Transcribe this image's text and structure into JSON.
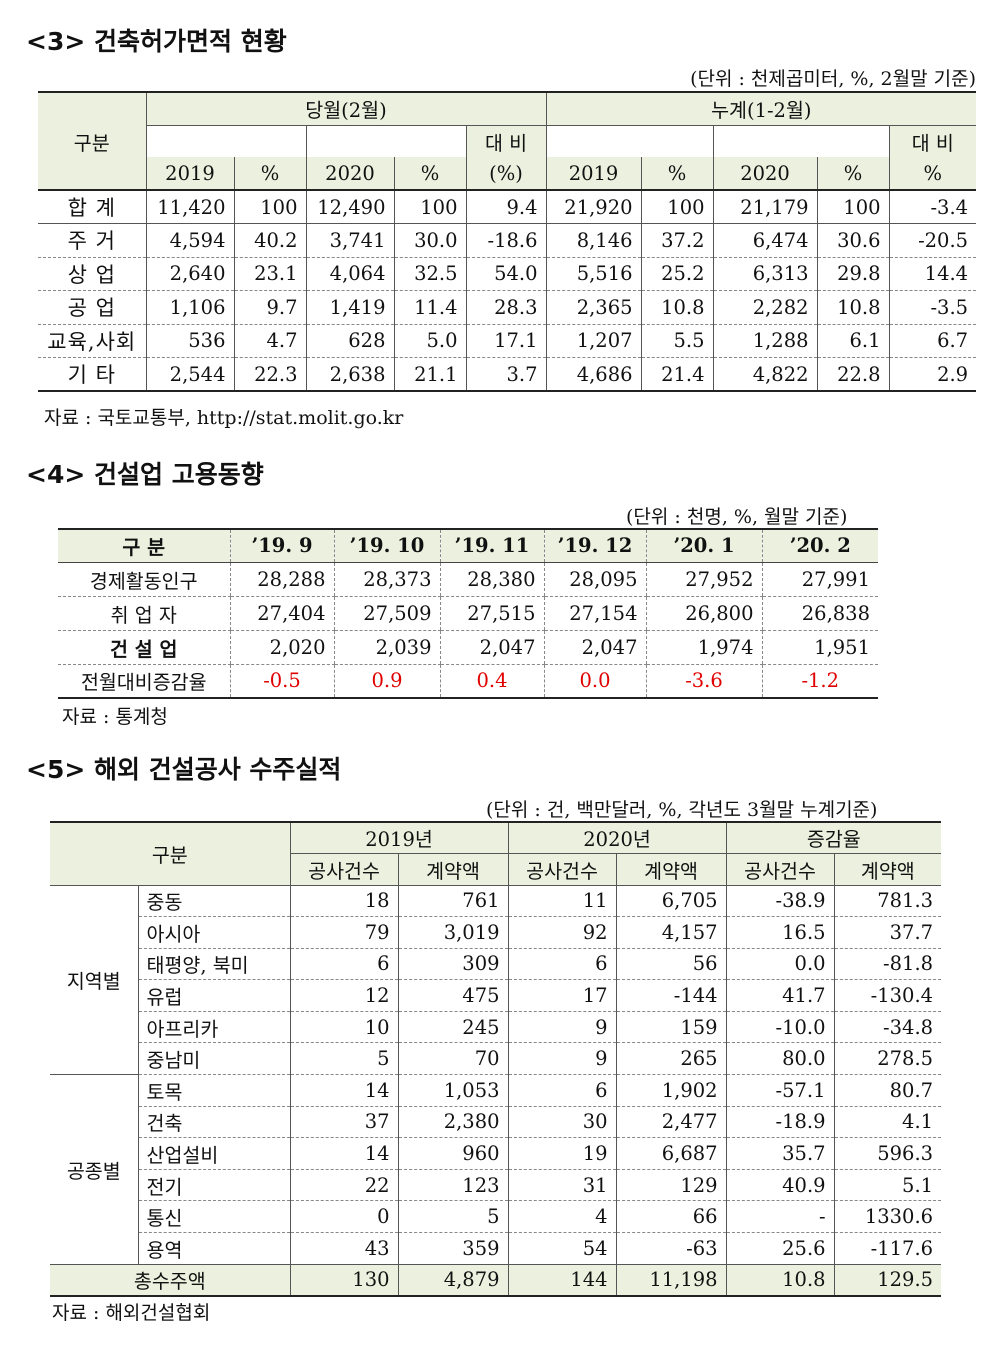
{
  "s3": {
    "title": "<3> 건축허가면적 현황",
    "unit": "(단위 : 천제곱미터,  %, 2월말 기준)",
    "h_group": "구분",
    "h_month": "당월(2월)",
    "h_cum": "누계(1-2월)",
    "h_y2019": "2019",
    "h_pct": "%",
    "h_y2020": "2020",
    "h_cmp1": "대 비",
    "h_cmp1b": "(%)",
    "h_cmp2": "대 비",
    "h_cmp2b": "%",
    "rows": [
      {
        "label": "합 계",
        "v": [
          "11,420",
          "100",
          "12,490",
          "100",
          "9.4",
          "21,920",
          "100",
          "21,179",
          "100",
          "-3.4"
        ]
      },
      {
        "label": "주 거",
        "v": [
          "4,594",
          "40.2",
          "3,741",
          "30.0",
          "-18.6",
          "8,146",
          "37.2",
          "6,474",
          "30.6",
          "-20.5"
        ]
      },
      {
        "label": "상 업",
        "v": [
          "2,640",
          "23.1",
          "4,064",
          "32.5",
          "54.0",
          "5,516",
          "25.2",
          "6,313",
          "29.8",
          "14.4"
        ]
      },
      {
        "label": "공 업",
        "v": [
          "1,106",
          "9.7",
          "1,419",
          "11.4",
          "28.3",
          "2,365",
          "10.8",
          "2,282",
          "10.8",
          "-3.5"
        ]
      },
      {
        "label": "교육,사회",
        "v": [
          "536",
          "4.7",
          "628",
          "5.0",
          "17.1",
          "1,207",
          "5.5",
          "1,288",
          "6.1",
          "6.7"
        ]
      },
      {
        "label": "기 타",
        "v": [
          "2,544",
          "22.3",
          "2,638",
          "21.1",
          "3.7",
          "4,686",
          "21.4",
          "4,822",
          "22.8",
          "2.9"
        ]
      }
    ],
    "source": "자료 : 국토교통부, http://stat.molit.go.kr"
  },
  "s4": {
    "title": "<4> 건설업 고용동향",
    "unit": "(단위 : 천명, %, 월말 기준)",
    "h_group": "구 분",
    "months": [
      "’19. 9",
      "’19. 10",
      "’19. 11",
      "’19. 12",
      "’20. 1",
      "’20. 2"
    ],
    "rows": [
      {
        "label": "경제활동인구",
        "v": [
          "28,288",
          "28,373",
          "28,380",
          "28,095",
          "27,952",
          "27,991"
        ]
      },
      {
        "label": "취 업 자",
        "v": [
          "27,404",
          "27,509",
          "27,515",
          "27,154",
          "26,800",
          "26,838"
        ]
      },
      {
        "label": "건 설 업",
        "v": [
          "2,020",
          "2,039",
          "2,047",
          "2,047",
          "1,974",
          "1,951"
        ]
      },
      {
        "label": "전월대비증감율",
        "v": [
          "-0.5",
          "0.9",
          "0.4",
          "0.0",
          "-3.6",
          "-1.2"
        ]
      }
    ],
    "source": "자료 : 통계청"
  },
  "s5": {
    "title": "<5> 해외 건설공사 수주실적",
    "unit": "(단위 : 건, 백만달러, %, 각년도 3월말 누계기준)",
    "h_group": "구분",
    "h_2019": "2019년",
    "h_2020": "2020년",
    "h_change": "증감율",
    "h_count": "공사건수",
    "h_amount": "계약액",
    "region_label": "지역별",
    "type_label": "공종별",
    "region_rows": [
      {
        "label": "중동",
        "v": [
          "18",
          "761",
          "11",
          "6,705",
          "-38.9",
          "781.3"
        ]
      },
      {
        "label": "아시아",
        "v": [
          "79",
          "3,019",
          "92",
          "4,157",
          "16.5",
          "37.7"
        ]
      },
      {
        "label": "태평양, 북미",
        "v": [
          "6",
          "309",
          "6",
          "56",
          "0.0",
          "-81.8"
        ]
      },
      {
        "label": "유럽",
        "v": [
          "12",
          "475",
          "17",
          "-144",
          "41.7",
          "-130.4"
        ]
      },
      {
        "label": "아프리카",
        "v": [
          "10",
          "245",
          "9",
          "159",
          "-10.0",
          "-34.8"
        ]
      },
      {
        "label": "중남미",
        "v": [
          "5",
          "70",
          "9",
          "265",
          "80.0",
          "278.5"
        ]
      }
    ],
    "type_rows": [
      {
        "label": "토목",
        "v": [
          "14",
          "1,053",
          "6",
          "1,902",
          "-57.1",
          "80.7"
        ]
      },
      {
        "label": "건축",
        "v": [
          "37",
          "2,380",
          "30",
          "2,477",
          "-18.9",
          "4.1"
        ]
      },
      {
        "label": "산업설비",
        "v": [
          "14",
          "960",
          "19",
          "6,687",
          "35.7",
          "596.3"
        ]
      },
      {
        "label": "전기",
        "v": [
          "22",
          "123",
          "31",
          "129",
          "40.9",
          "5.1"
        ]
      },
      {
        "label": "통신",
        "v": [
          "0",
          "5",
          "4",
          "66",
          "-",
          "1330.6"
        ]
      },
      {
        "label": "용역",
        "v": [
          "43",
          "359",
          "54",
          "-63",
          "25.6",
          "-117.6"
        ]
      }
    ],
    "total": {
      "label": "총수주액",
      "v": [
        "130",
        "4,879",
        "144",
        "11,198",
        "10.8",
        "129.5"
      ]
    },
    "source": "자료 : 해외건설협회"
  }
}
